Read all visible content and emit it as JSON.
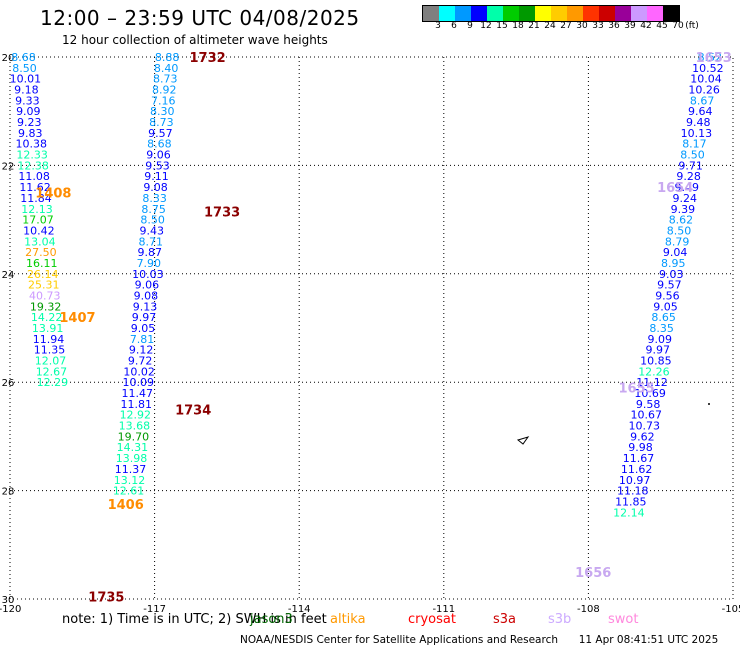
{
  "header": {
    "title": "12:00 – 23:59 UTC 04/08/2025",
    "subtitle": "12 hour collection of altimeter wave heights"
  },
  "colorbar": {
    "colors": [
      "#7f7f7f",
      "#00ffff",
      "#0099ff",
      "#0000ff",
      "#00ffaa",
      "#00cc00",
      "#009900",
      "#ffff00",
      "#ffcc00",
      "#ff9900",
      "#ff3300",
      "#cc0000",
      "#990099",
      "#cc99ff",
      "#ff66ff",
      "#000000"
    ],
    "ticks": [
      "3",
      "6",
      "9",
      "12",
      "15",
      "18",
      "21",
      "24",
      "27",
      "30",
      "33",
      "36",
      "39",
      "42",
      "45",
      "70",
      "(ft)"
    ]
  },
  "footer": {
    "note": "note:  1) Time is in UTC; 2) SWH is in feet",
    "legend": [
      {
        "label": "jason3",
        "color": "#006600"
      },
      {
        "label": "altika",
        "color": "#ff9900"
      },
      {
        "label": "cryosat",
        "color": "#ff0000"
      },
      {
        "label": "s3a",
        "color": "#cc0000"
      },
      {
        "label": "s3b",
        "color": "#ccaaff"
      },
      {
        "label": "swot",
        "color": "#ff88dd"
      }
    ],
    "credit_left": "NOAA/NESDIS Center for Satellite Applications and Research",
    "credit_right": "11 Apr 08:41:51 UTC 2025"
  },
  "chart_data": {
    "type": "scatter",
    "title": "12:00 – 23:59 UTC 04/08/2025",
    "xlim": [
      -120,
      -105
    ],
    "ylim": [
      20,
      30
    ],
    "y_axis_inverted": true,
    "grid": true,
    "x_ticks": [
      "-120",
      "-117",
      "-114",
      "-111",
      "-108",
      "-105"
    ],
    "y_ticks": [
      "20",
      "22",
      "24",
      "26",
      "28",
      "30"
    ],
    "units": "ft",
    "time_labels": [
      {
        "text": "1732",
        "x": -115.9,
        "y": 20.0,
        "color": "#8b0000"
      },
      {
        "text": "1733",
        "x": -115.6,
        "y": 22.85,
        "color": "#8b0000"
      },
      {
        "text": "1734",
        "x": -116.2,
        "y": 26.5,
        "color": "#8b0000"
      },
      {
        "text": "1735",
        "x": -118.0,
        "y": 29.95,
        "color": "#8b0000"
      },
      {
        "text": "1408",
        "x": -119.1,
        "y": 22.5,
        "color": "#ff8c00"
      },
      {
        "text": "1407",
        "x": -118.6,
        "y": 24.8,
        "color": "#ff8c00"
      },
      {
        "text": "1406",
        "x": -117.6,
        "y": 28.25,
        "color": "#ff8c00"
      },
      {
        "text": "1653",
        "x": -105.4,
        "y": 20.0,
        "color": "#c8a8f0"
      },
      {
        "text": "1654",
        "x": -106.2,
        "y": 22.4,
        "color": "#c8a8f0"
      },
      {
        "text": "1655",
        "x": -107.0,
        "y": 26.1,
        "color": "#c8a8f0"
      },
      {
        "text": "1656",
        "x": -107.9,
        "y": 29.5,
        "color": "#c8a8f0"
      }
    ],
    "series": [
      {
        "name": "track 1732-1735",
        "points": [
          {
            "x": -116.74,
            "y": 20.0,
            "v": "8.88"
          },
          {
            "x": -116.76,
            "y": 20.2,
            "v": "8.40"
          },
          {
            "x": -116.78,
            "y": 20.4,
            "v": "8.73"
          },
          {
            "x": -116.8,
            "y": 20.6,
            "v": "8.92"
          },
          {
            "x": -116.82,
            "y": 20.8,
            "v": "7.16"
          },
          {
            "x": -116.84,
            "y": 21.0,
            "v": "8.30"
          },
          {
            "x": -116.86,
            "y": 21.2,
            "v": "8.73"
          },
          {
            "x": -116.88,
            "y": 21.4,
            "v": "9.57"
          },
          {
            "x": -116.9,
            "y": 21.6,
            "v": "8.68"
          },
          {
            "x": -116.92,
            "y": 21.8,
            "v": "9.06"
          },
          {
            "x": -116.94,
            "y": 22.0,
            "v": "9.53"
          },
          {
            "x": -116.96,
            "y": 22.2,
            "v": "9.11"
          },
          {
            "x": -116.98,
            "y": 22.4,
            "v": "9.08"
          },
          {
            "x": -117.0,
            "y": 22.6,
            "v": "8.33"
          },
          {
            "x": -117.02,
            "y": 22.8,
            "v": "8.75"
          },
          {
            "x": -117.04,
            "y": 23.0,
            "v": "8.50"
          },
          {
            "x": -117.06,
            "y": 23.2,
            "v": "9.43"
          },
          {
            "x": -117.08,
            "y": 23.4,
            "v": "8.71"
          },
          {
            "x": -117.1,
            "y": 23.6,
            "v": "9.87"
          },
          {
            "x": -117.12,
            "y": 23.8,
            "v": "7.90"
          },
          {
            "x": -117.14,
            "y": 24.0,
            "v": "10.03"
          },
          {
            "x": -117.16,
            "y": 24.2,
            "v": "9.06"
          },
          {
            "x": -117.18,
            "y": 24.4,
            "v": "9.08"
          },
          {
            "x": -117.2,
            "y": 24.6,
            "v": "9.13"
          },
          {
            "x": -117.22,
            "y": 24.8,
            "v": "9.97"
          },
          {
            "x": -117.24,
            "y": 25.0,
            "v": "9.05"
          },
          {
            "x": -117.26,
            "y": 25.2,
            "v": "7.81"
          },
          {
            "x": -117.28,
            "y": 25.4,
            "v": "9.12"
          },
          {
            "x": -117.3,
            "y": 25.6,
            "v": "9.72"
          },
          {
            "x": -117.32,
            "y": 25.8,
            "v": "10.02"
          },
          {
            "x": -117.34,
            "y": 26.0,
            "v": "10.09"
          },
          {
            "x": -117.36,
            "y": 26.2,
            "v": "11.47"
          },
          {
            "x": -117.38,
            "y": 26.4,
            "v": "11.81"
          },
          {
            "x": -117.4,
            "y": 26.6,
            "v": "12.92"
          },
          {
            "x": -117.42,
            "y": 26.8,
            "v": "13.68"
          },
          {
            "x": -117.44,
            "y": 27.0,
            "v": "19.70"
          },
          {
            "x": -117.46,
            "y": 27.2,
            "v": "14.31"
          },
          {
            "x": -117.48,
            "y": 27.4,
            "v": "13.98"
          },
          {
            "x": -117.5,
            "y": 27.6,
            "v": "11.37"
          },
          {
            "x": -117.52,
            "y": 27.8,
            "v": "13.12"
          },
          {
            "x": -117.54,
            "y": 28.0,
            "v": "12.61"
          }
        ]
      },
      {
        "name": "track 1406-1408",
        "points": [
          {
            "x": -119.72,
            "y": 20.0,
            "v": "8.68"
          },
          {
            "x": -119.7,
            "y": 20.2,
            "v": "8.50"
          },
          {
            "x": -119.68,
            "y": 20.4,
            "v": "10.01"
          },
          {
            "x": -119.66,
            "y": 20.6,
            "v": "9.18"
          },
          {
            "x": -119.64,
            "y": 20.8,
            "v": "9.33"
          },
          {
            "x": -119.62,
            "y": 21.0,
            "v": "9.09"
          },
          {
            "x": -119.6,
            "y": 21.2,
            "v": "9.23"
          },
          {
            "x": -119.58,
            "y": 21.4,
            "v": "9.83"
          },
          {
            "x": -119.56,
            "y": 21.6,
            "v": "10.38"
          },
          {
            "x": -119.54,
            "y": 21.8,
            "v": "12.33"
          },
          {
            "x": -119.52,
            "y": 22.0,
            "v": "12.38"
          },
          {
            "x": -119.5,
            "y": 22.2,
            "v": "11.08"
          },
          {
            "x": -119.48,
            "y": 22.4,
            "v": "11.62"
          },
          {
            "x": -119.46,
            "y": 22.6,
            "v": "11.84"
          },
          {
            "x": -119.44,
            "y": 22.8,
            "v": "12.13"
          },
          {
            "x": -119.42,
            "y": 23.0,
            "v": "17.07"
          },
          {
            "x": -119.4,
            "y": 23.2,
            "v": "10.42"
          },
          {
            "x": -119.38,
            "y": 23.4,
            "v": "13.04"
          },
          {
            "x": -119.36,
            "y": 23.6,
            "v": "27.50"
          },
          {
            "x": -119.34,
            "y": 23.8,
            "v": "16.11"
          },
          {
            "x": -119.32,
            "y": 24.0,
            "v": "26.14"
          },
          {
            "x": -119.3,
            "y": 24.2,
            "v": "25.31"
          },
          {
            "x": -119.28,
            "y": 24.4,
            "v": "40.73"
          },
          {
            "x": -119.26,
            "y": 24.6,
            "v": "19.32"
          },
          {
            "x": -119.24,
            "y": 24.8,
            "v": "14.22"
          },
          {
            "x": -119.22,
            "y": 25.0,
            "v": "13.91"
          },
          {
            "x": -119.2,
            "y": 25.2,
            "v": "11.94"
          },
          {
            "x": -119.18,
            "y": 25.4,
            "v": "11.35"
          },
          {
            "x": -119.16,
            "y": 25.6,
            "v": "12.07"
          },
          {
            "x": -119.14,
            "y": 25.8,
            "v": "12.67"
          },
          {
            "x": -119.12,
            "y": 26.0,
            "v": "12.29"
          }
        ]
      },
      {
        "name": "track 1653-1656",
        "points": [
          {
            "x": -105.48,
            "y": 20.0,
            "v": "8.52"
          },
          {
            "x": -105.52,
            "y": 20.2,
            "v": "10.52"
          },
          {
            "x": -105.56,
            "y": 20.4,
            "v": "10.04"
          },
          {
            "x": -105.6,
            "y": 20.6,
            "v": "10.26"
          },
          {
            "x": -105.64,
            "y": 20.8,
            "v": "8.67"
          },
          {
            "x": -105.68,
            "y": 21.0,
            "v": "9.64"
          },
          {
            "x": -105.72,
            "y": 21.2,
            "v": "9.48"
          },
          {
            "x": -105.76,
            "y": 21.4,
            "v": "10.13"
          },
          {
            "x": -105.8,
            "y": 21.6,
            "v": "8.17"
          },
          {
            "x": -105.84,
            "y": 21.8,
            "v": "8.50"
          },
          {
            "x": -105.88,
            "y": 22.0,
            "v": "9.71"
          },
          {
            "x": -105.92,
            "y": 22.2,
            "v": "9.28"
          },
          {
            "x": -105.96,
            "y": 22.4,
            "v": "9.49"
          },
          {
            "x": -106.0,
            "y": 22.6,
            "v": "9.24"
          },
          {
            "x": -106.04,
            "y": 22.8,
            "v": "9.39"
          },
          {
            "x": -106.08,
            "y": 23.0,
            "v": "8.62"
          },
          {
            "x": -106.12,
            "y": 23.2,
            "v": "8.50"
          },
          {
            "x": -106.16,
            "y": 23.4,
            "v": "8.79"
          },
          {
            "x": -106.2,
            "y": 23.6,
            "v": "9.04"
          },
          {
            "x": -106.24,
            "y": 23.8,
            "v": "8.95"
          },
          {
            "x": -106.28,
            "y": 24.0,
            "v": "9.03"
          },
          {
            "x": -106.32,
            "y": 24.2,
            "v": "9.57"
          },
          {
            "x": -106.36,
            "y": 24.4,
            "v": "9.56"
          },
          {
            "x": -106.4,
            "y": 24.6,
            "v": "9.05"
          },
          {
            "x": -106.44,
            "y": 24.8,
            "v": "8.65"
          },
          {
            "x": -106.48,
            "y": 25.0,
            "v": "8.35"
          },
          {
            "x": -106.52,
            "y": 25.2,
            "v": "9.09"
          },
          {
            "x": -106.56,
            "y": 25.4,
            "v": "9.97"
          },
          {
            "x": -106.6,
            "y": 25.6,
            "v": "10.85"
          },
          {
            "x": -106.64,
            "y": 25.8,
            "v": "12.26"
          },
          {
            "x": -106.68,
            "y": 26.0,
            "v": "11.12"
          },
          {
            "x": -106.72,
            "y": 26.2,
            "v": "10.69"
          },
          {
            "x": -106.76,
            "y": 26.4,
            "v": "9.58"
          },
          {
            "x": -106.8,
            "y": 26.6,
            "v": "10.67"
          },
          {
            "x": -106.84,
            "y": 26.8,
            "v": "10.73"
          },
          {
            "x": -106.88,
            "y": 27.0,
            "v": "9.62"
          },
          {
            "x": -106.92,
            "y": 27.2,
            "v": "9.98"
          },
          {
            "x": -106.96,
            "y": 27.4,
            "v": "11.67"
          },
          {
            "x": -107.0,
            "y": 27.6,
            "v": "11.62"
          },
          {
            "x": -107.04,
            "y": 27.8,
            "v": "10.97"
          },
          {
            "x": -107.08,
            "y": 28.0,
            "v": "11.18"
          },
          {
            "x": -107.12,
            "y": 28.2,
            "v": "11.85"
          },
          {
            "x": -107.16,
            "y": 28.4,
            "v": "12.14"
          }
        ]
      }
    ]
  }
}
